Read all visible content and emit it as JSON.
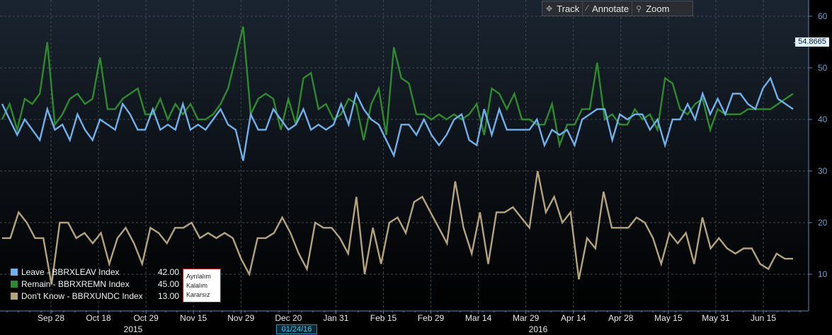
{
  "toolbar": {
    "track_label": "Track",
    "annotate_label": "Annotate",
    "zoom_label": "Zoom"
  },
  "legend": [
    {
      "name": "Leave - BBRXLEAV Index",
      "value": "42.00",
      "color": "#6fb1ec"
    },
    {
      "name": "Remain - BBRXREMN Index",
      "value": "45.00",
      "color": "#2e8a2e"
    },
    {
      "name": "Don't Know - BBRXUNDC Index",
      "value": "13.00",
      "color": "#b5a37c"
    }
  ],
  "annotation_labels": [
    "Ayrılalım",
    "Kalalım",
    "Kararsız"
  ],
  "last_value_badge": "54.8665",
  "cursor_date": "01/24/16",
  "colors": {
    "background_top": "#1a2430",
    "background_bottom": "#000000",
    "axis": "#5b87b5",
    "gridline": "#41474e"
  },
  "chart_data": {
    "type": "line",
    "ylim": [
      6,
      63
    ],
    "y_ticks": [
      10,
      20,
      30,
      40,
      50,
      60
    ],
    "x_tick_labels": [
      "Sep 28",
      "Oct 18",
      "Oct 29",
      "Nov 15",
      "Nov 29",
      "Dec 20",
      "Jan 31",
      "Feb 15",
      "Feb 29",
      "Mar 14",
      "Mar 29",
      "Apr 14",
      "Apr 28",
      "May 15",
      "May 31",
      "Jun 15"
    ],
    "year_labels": [
      "2015",
      "2016"
    ],
    "grid": true,
    "legend_position": "bottom-left",
    "series": [
      {
        "name": "Leave - BBRXLEAV Index",
        "color": "#6fb1ec",
        "values": [
          43,
          40,
          37,
          40,
          38,
          36,
          42,
          38,
          39,
          36,
          41,
          38,
          36,
          40,
          39,
          38,
          43,
          41,
          38,
          38,
          42,
          38,
          39,
          38,
          43,
          38,
          39,
          38,
          40,
          42,
          39,
          38,
          32,
          41,
          38,
          38,
          42,
          40,
          38,
          39,
          42,
          38,
          39,
          38,
          39,
          43,
          39,
          45,
          42,
          40,
          39,
          36,
          33,
          39,
          39,
          37,
          40,
          37,
          35,
          37,
          40,
          41,
          36,
          35,
          42,
          37,
          42,
          38,
          38,
          38,
          38,
          40,
          35,
          38,
          37,
          38,
          35,
          40,
          41,
          42,
          42,
          36,
          41,
          40,
          41,
          41,
          38,
          40,
          35,
          40,
          40,
          43,
          40,
          45,
          41,
          44,
          41,
          45,
          45,
          43,
          42,
          46,
          48,
          44,
          43,
          42
        ]
      },
      {
        "name": "Remain - BBRXREMN Index",
        "color": "#2e8a2e",
        "values": [
          40,
          43,
          38,
          44,
          43,
          45,
          55,
          39,
          41,
          44,
          45,
          43,
          44,
          52,
          42,
          42,
          44,
          45,
          46,
          41,
          41,
          44,
          40,
          43,
          41,
          43,
          40,
          40,
          41,
          43,
          46,
          52,
          58,
          41,
          44,
          45,
          44,
          38,
          44,
          39,
          48,
          49,
          42,
          43,
          40,
          41,
          44,
          43,
          36,
          43,
          46,
          37,
          54,
          48,
          47,
          41,
          41,
          40,
          41,
          40,
          41,
          40,
          41,
          43,
          37,
          46,
          45,
          42,
          45,
          40,
          40,
          39,
          39,
          43,
          35,
          39,
          39,
          42,
          42,
          51,
          40,
          41,
          39,
          39,
          42,
          40,
          41,
          38,
          48,
          47,
          42,
          41,
          43,
          44,
          38,
          42,
          41,
          41,
          41,
          42,
          42,
          42,
          42,
          43,
          44,
          45
        ]
      },
      {
        "name": "Don't Know - BBRXUNDC Index",
        "color": "#b5a37c",
        "values": [
          17,
          17,
          22,
          20,
          17,
          17,
          8,
          20,
          20,
          17,
          18,
          16,
          18,
          12,
          17,
          19,
          16,
          12,
          19,
          18,
          16,
          19,
          19,
          20,
          17,
          18,
          17,
          18,
          17,
          13,
          10,
          17,
          17,
          18,
          21,
          18,
          14,
          11,
          20,
          19,
          19,
          17,
          14,
          25,
          10,
          19,
          12,
          20,
          21,
          18,
          24,
          25,
          22,
          19,
          16,
          28,
          19,
          14,
          22,
          12,
          22,
          22,
          23,
          21,
          19,
          30,
          22,
          25,
          20,
          22,
          9,
          17,
          15,
          26,
          19,
          19,
          19,
          21,
          20,
          17,
          12,
          18,
          16,
          18,
          12,
          21,
          15,
          17,
          15,
          14,
          15,
          15,
          12,
          11,
          14,
          13,
          13
        ]
      }
    ]
  }
}
